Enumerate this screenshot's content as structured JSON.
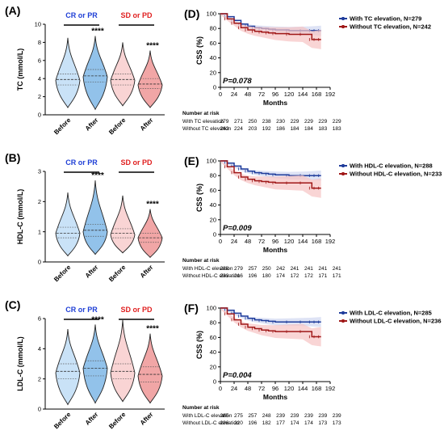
{
  "figure": {
    "violin_panels": [
      {
        "label": "(A)",
        "ylabel": "TC (mmol/L)",
        "yticks": [
          "0",
          "2",
          "4",
          "6",
          "8",
          "10"
        ],
        "ymax": 10,
        "groups": [
          {
            "name": "CR or PR",
            "color": "#1f3fd6"
          },
          {
            "name": "SD or PD",
            "color": "#e02020"
          }
        ],
        "conditions": [
          "Before",
          "After",
          "Before",
          "After"
        ],
        "significance": [
          "",
          "****",
          "",
          "****"
        ]
      },
      {
        "label": "(B)",
        "ylabel": "HDL-C (mmol/L)",
        "yticks": [
          "0",
          "1",
          "2",
          "3"
        ],
        "ymax": 3,
        "groups": [
          {
            "name": "CR or PR",
            "color": "#1f3fd6"
          },
          {
            "name": "SD or PD",
            "color": "#e02020"
          }
        ],
        "conditions": [
          "Before",
          "After",
          "Before",
          "After"
        ],
        "significance": [
          "",
          "****",
          "",
          "****"
        ]
      },
      {
        "label": "(C)",
        "ylabel": "LDL-C (mmol/L)",
        "yticks": [
          "0",
          "2",
          "4",
          "6"
        ],
        "ymax": 6,
        "groups": [
          {
            "name": "CR or PR",
            "color": "#1f3fd6"
          },
          {
            "name": "SD or PD",
            "color": "#e02020"
          }
        ],
        "conditions": [
          "Before",
          "After",
          "Before",
          "After"
        ],
        "significance": [
          "",
          "****",
          "",
          "****"
        ]
      }
    ],
    "km_panels": [
      {
        "label": "(D)",
        "ylabel": "CSS (%)",
        "xlabel": "Months",
        "p_text": "P=0.078",
        "risk_header": "Number at risk",
        "series": [
          {
            "name": "With TC elevation, N=279",
            "row_label": "With TC elevation",
            "color": "#1f3c9b",
            "risk": [
              "279",
              "271",
              "250",
              "238",
              "230",
              "229",
              "229",
              "229",
              "229"
            ]
          },
          {
            "name": "Without TC elevation, N=242",
            "row_label": "Without TC elevation",
            "color": "#a01818",
            "risk": [
              "242",
              "224",
              "203",
              "192",
              "186",
              "184",
              "184",
              "183",
              "183"
            ]
          }
        ]
      },
      {
        "label": "(E)",
        "ylabel": "CSS (%)",
        "xlabel": "Months",
        "p_text": "P=0.009",
        "risk_header": "Number at risk",
        "series": [
          {
            "name": "With HDL-C elevation, N=288",
            "row_label": "With HDL-C elevation",
            "color": "#1f3c9b",
            "risk": [
              "288",
              "279",
              "257",
              "250",
              "242",
              "241",
              "241",
              "241",
              "241"
            ]
          },
          {
            "name": "Without HDL-C elevation, N=233",
            "row_label": "Without HDL-C elevation",
            "color": "#a01818",
            "risk": [
              "233",
              "216",
              "196",
              "180",
              "174",
              "172",
              "172",
              "171",
              "171"
            ]
          }
        ]
      },
      {
        "label": "(F)",
        "ylabel": "CSS (%)",
        "xlabel": "Months",
        "p_text": "P=0.004",
        "risk_header": "Number at risk",
        "series": [
          {
            "name": "With LDL-C elevation, N=285",
            "row_label": "With LDL-C elevation",
            "color": "#1f3c9b",
            "risk": [
              "285",
              "275",
              "257",
              "248",
              "239",
              "239",
              "239",
              "239",
              "239"
            ]
          },
          {
            "name": "Without LDL-C elevation, N=236",
            "row_label": "Without LDL-C elevation",
            "color": "#a01818",
            "risk": [
              "236",
              "220",
              "196",
              "182",
              "177",
              "174",
              "174",
              "173",
              "173"
            ]
          }
        ]
      }
    ]
  },
  "chart_data": [
    {
      "type": "violin",
      "panel": "(A)",
      "ylabel": "TC (mmol/L)",
      "ylim": [
        0,
        10
      ],
      "categories": [
        "Before",
        "After",
        "Before",
        "After"
      ],
      "groups": [
        "CR or PR",
        "CR or PR",
        "SD or PD",
        "SD or PD"
      ],
      "series": [
        {
          "values": [
            {
              "min": 0.8,
              "q1": 3.3,
              "median": 3.9,
              "q3": 4.5,
              "max": 8.5,
              "mode": 3.8
            },
            {
              "min": 0.6,
              "q1": 3.6,
              "median": 4.3,
              "q3": 5.0,
              "max": 8.7,
              "mode": 4.2
            },
            {
              "min": 1.0,
              "q1": 3.3,
              "median": 3.9,
              "q3": 4.5,
              "max": 8.0,
              "mode": 3.8
            },
            {
              "min": 0.8,
              "q1": 2.9,
              "median": 3.4,
              "q3": 4.0,
              "max": 7.1,
              "mode": 3.3
            }
          ]
        }
      ],
      "annotations": [
        "",
        "****",
        "",
        "****"
      ]
    },
    {
      "type": "violin",
      "panel": "(B)",
      "ylabel": "HDL-C (mmol/L)",
      "ylim": [
        0,
        3
      ],
      "categories": [
        "Before",
        "After",
        "Before",
        "After"
      ],
      "groups": [
        "CR or PR",
        "CR or PR",
        "SD or PD",
        "SD or PD"
      ],
      "series": [
        {
          "values": [
            {
              "min": 0.2,
              "q1": 0.8,
              "median": 0.95,
              "q3": 1.15,
              "max": 2.3,
              "mode": 0.95
            },
            {
              "min": 0.25,
              "q1": 0.85,
              "median": 1.05,
              "q3": 1.25,
              "max": 2.7,
              "mode": 1.0
            },
            {
              "min": 0.3,
              "q1": 0.8,
              "median": 0.95,
              "q3": 1.1,
              "max": 2.2,
              "mode": 0.9
            },
            {
              "min": 0.15,
              "q1": 0.65,
              "median": 0.8,
              "q3": 0.95,
              "max": 1.75,
              "mode": 0.8
            }
          ]
        }
      ],
      "annotations": [
        "",
        "****",
        "",
        "****"
      ]
    },
    {
      "type": "violin",
      "panel": "(C)",
      "ylabel": "LDL-C (mmol/L)",
      "ylim": [
        0,
        6
      ],
      "categories": [
        "Before",
        "After",
        "Before",
        "After"
      ],
      "groups": [
        "CR or PR",
        "CR or PR",
        "SD or PD",
        "SD or PD"
      ],
      "series": [
        {
          "values": [
            {
              "min": 0.3,
              "q1": 2.0,
              "median": 2.5,
              "q3": 3.0,
              "max": 5.3,
              "mode": 2.4
            },
            {
              "min": 0.4,
              "q1": 2.2,
              "median": 2.7,
              "q3": 3.2,
              "max": 5.6,
              "mode": 2.7
            },
            {
              "min": 0.5,
              "q1": 2.0,
              "median": 2.5,
              "q3": 3.0,
              "max": 5.9,
              "mode": 2.4
            },
            {
              "min": 0.4,
              "q1": 1.8,
              "median": 2.3,
              "q3": 2.8,
              "max": 5.0,
              "mode": 2.2
            }
          ]
        }
      ],
      "annotations": [
        "",
        "****",
        "",
        "****"
      ]
    },
    {
      "type": "line",
      "panel": "(D)",
      "ylabel": "CSS (%)",
      "xlabel": "Months",
      "xlim": [
        0,
        192
      ],
      "ylim": [
        0,
        100
      ],
      "xticks": [
        0,
        24,
        48,
        72,
        96,
        120,
        144,
        168,
        192
      ],
      "yticks": [
        0,
        20,
        40,
        60,
        80,
        100
      ],
      "series": [
        {
          "name": "With TC elevation, N=279",
          "x": [
            0,
            12,
            24,
            36,
            48,
            60,
            72,
            84,
            96,
            120,
            144,
            160,
            168,
            176
          ],
          "y": [
            100,
            96,
            91,
            86,
            83,
            81,
            80,
            79,
            78,
            77,
            77,
            77,
            77,
            77
          ]
        },
        {
          "name": "Without TC elevation, N=242",
          "x": [
            0,
            12,
            24,
            36,
            48,
            60,
            72,
            84,
            96,
            120,
            144,
            160,
            168,
            176
          ],
          "y": [
            100,
            93,
            87,
            81,
            78,
            76,
            75,
            74,
            73,
            72,
            72,
            65,
            65,
            65
          ]
        }
      ],
      "annotations": [
        "P=0.078"
      ]
    },
    {
      "type": "line",
      "panel": "(E)",
      "ylabel": "CSS (%)",
      "xlabel": "Months",
      "xlim": [
        0,
        192
      ],
      "ylim": [
        0,
        100
      ],
      "xticks": [
        0,
        24,
        48,
        72,
        96,
        120,
        144,
        168,
        192
      ],
      "yticks": [
        0,
        20,
        40,
        60,
        80,
        100
      ],
      "series": [
        {
          "name": "With HDL-C elevation, N=288",
          "x": [
            0,
            12,
            24,
            36,
            48,
            60,
            72,
            84,
            96,
            120,
            144,
            160,
            168,
            176
          ],
          "y": [
            100,
            97,
            93,
            89,
            86,
            84,
            83,
            82,
            81,
            80,
            80,
            80,
            80,
            80
          ]
        },
        {
          "name": "Without HDL-C elevation, N=233",
          "x": [
            0,
            12,
            24,
            36,
            48,
            60,
            72,
            84,
            96,
            120,
            144,
            160,
            168,
            176
          ],
          "y": [
            100,
            92,
            84,
            78,
            75,
            73,
            72,
            71,
            70,
            70,
            70,
            63,
            63,
            63
          ]
        }
      ],
      "annotations": [
        "P=0.009"
      ]
    },
    {
      "type": "line",
      "panel": "(F)",
      "ylabel": "CSS (%)",
      "xlabel": "Months",
      "xlim": [
        0,
        192
      ],
      "ylim": [
        0,
        100
      ],
      "xticks": [
        0,
        24,
        48,
        72,
        96,
        120,
        144,
        168,
        192
      ],
      "yticks": [
        0,
        20,
        40,
        60,
        80,
        100
      ],
      "series": [
        {
          "name": "With LDL-C elevation, N=285",
          "x": [
            0,
            12,
            24,
            36,
            48,
            60,
            72,
            84,
            96,
            120,
            144,
            160,
            168,
            176
          ],
          "y": [
            100,
            97,
            93,
            89,
            86,
            84,
            83,
            82,
            81,
            81,
            81,
            81,
            81,
            81
          ]
        },
        {
          "name": "Without LDL-C elevation, N=236",
          "x": [
            0,
            12,
            24,
            36,
            48,
            60,
            72,
            84,
            96,
            120,
            144,
            160,
            168,
            176
          ],
          "y": [
            100,
            92,
            84,
            78,
            74,
            72,
            70,
            69,
            68,
            68,
            68,
            61,
            61,
            61
          ]
        }
      ],
      "annotations": [
        "P=0.004"
      ]
    }
  ]
}
